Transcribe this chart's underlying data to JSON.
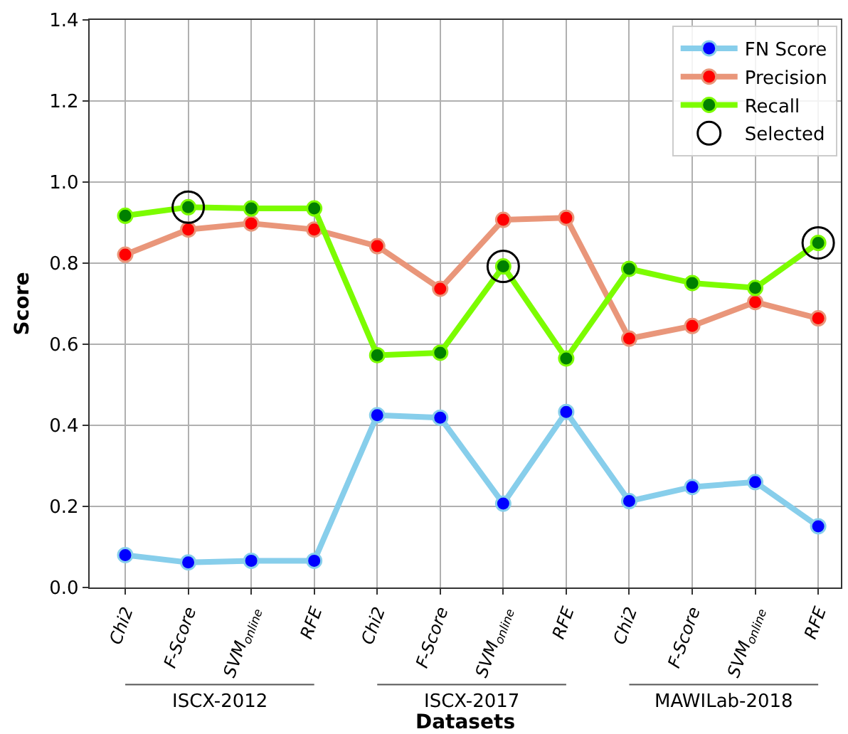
{
  "chart_data": {
    "type": "line",
    "xlabel": "Datasets",
    "ylabel": "Score",
    "categories": [
      "Chi2",
      "F-Score",
      "SVM$_{online}$",
      "RFE",
      "Chi2",
      "F-Score",
      "SVM$_{online}$",
      "RFE",
      "Chi2",
      "F-Score",
      "SVM$_{online}$",
      "RFE"
    ],
    "annotations": [
      "ISCX-2012",
      "ISCX-2017",
      "MAWILab-2018"
    ],
    "series": [
      {
        "name": "FN Score",
        "color": "#87ceeb",
        "colors": [
          "#0000ff",
          "#0000ff",
          "#0000ff",
          "#0000ff",
          "#0000ff",
          "#0000ff",
          "#0000ff",
          "#0000ff",
          "#0000ff",
          "#0000ff",
          "#0000ff",
          "#0000ff"
        ],
        "values": [
          0.08,
          0.062,
          0.066,
          0.066,
          0.425,
          0.419,
          0.207,
          0.433,
          0.213,
          0.248,
          0.26,
          0.151
        ]
      },
      {
        "name": "Precision",
        "color": "#e9967a",
        "colors": [
          "#ff0000",
          "#ff0000",
          "#ff0000",
          "#ff0000",
          "#ff0000",
          "#ff0000",
          "#ff0000",
          "#ff0000",
          "#ff0000",
          "#ff0000",
          "#ff0000",
          "#ff0000"
        ],
        "values": [
          0.821,
          0.883,
          0.898,
          0.883,
          0.842,
          0.737,
          0.907,
          0.912,
          0.614,
          0.645,
          0.704,
          0.664
        ]
      },
      {
        "name": "Recall",
        "color": "#7cfc00",
        "colors": [
          "#008000",
          "#008000",
          "#008000",
          "#008000",
          "#008000",
          "#008000",
          "#008000",
          "#008000",
          "#008000",
          "#008000",
          "#008000",
          "#008000"
        ],
        "values": [
          0.917,
          0.938,
          0.935,
          0.935,
          0.573,
          0.579,
          0.792,
          0.565,
          0.786,
          0.751,
          0.739,
          0.85
        ]
      },
      {
        "name": "Selected",
        "type": "scatter",
        "color": "#000000",
        "values": [
          null,
          0.938,
          null,
          null,
          null,
          null,
          0.792,
          null,
          null,
          null,
          null,
          0.85
        ]
      }
    ],
    "ylim": [
      0,
      1.4
    ],
    "yticks": [
      {
        "value": 0,
        "label": "0.0"
      },
      0.2,
      0.4,
      0.6,
      0.8,
      {
        "value": 1,
        "label": "1.0"
      },
      1.2,
      1.4
    ],
    "grid": true,
    "legend": "top right",
    "marker": "circle",
    "line_style": "solid"
  }
}
